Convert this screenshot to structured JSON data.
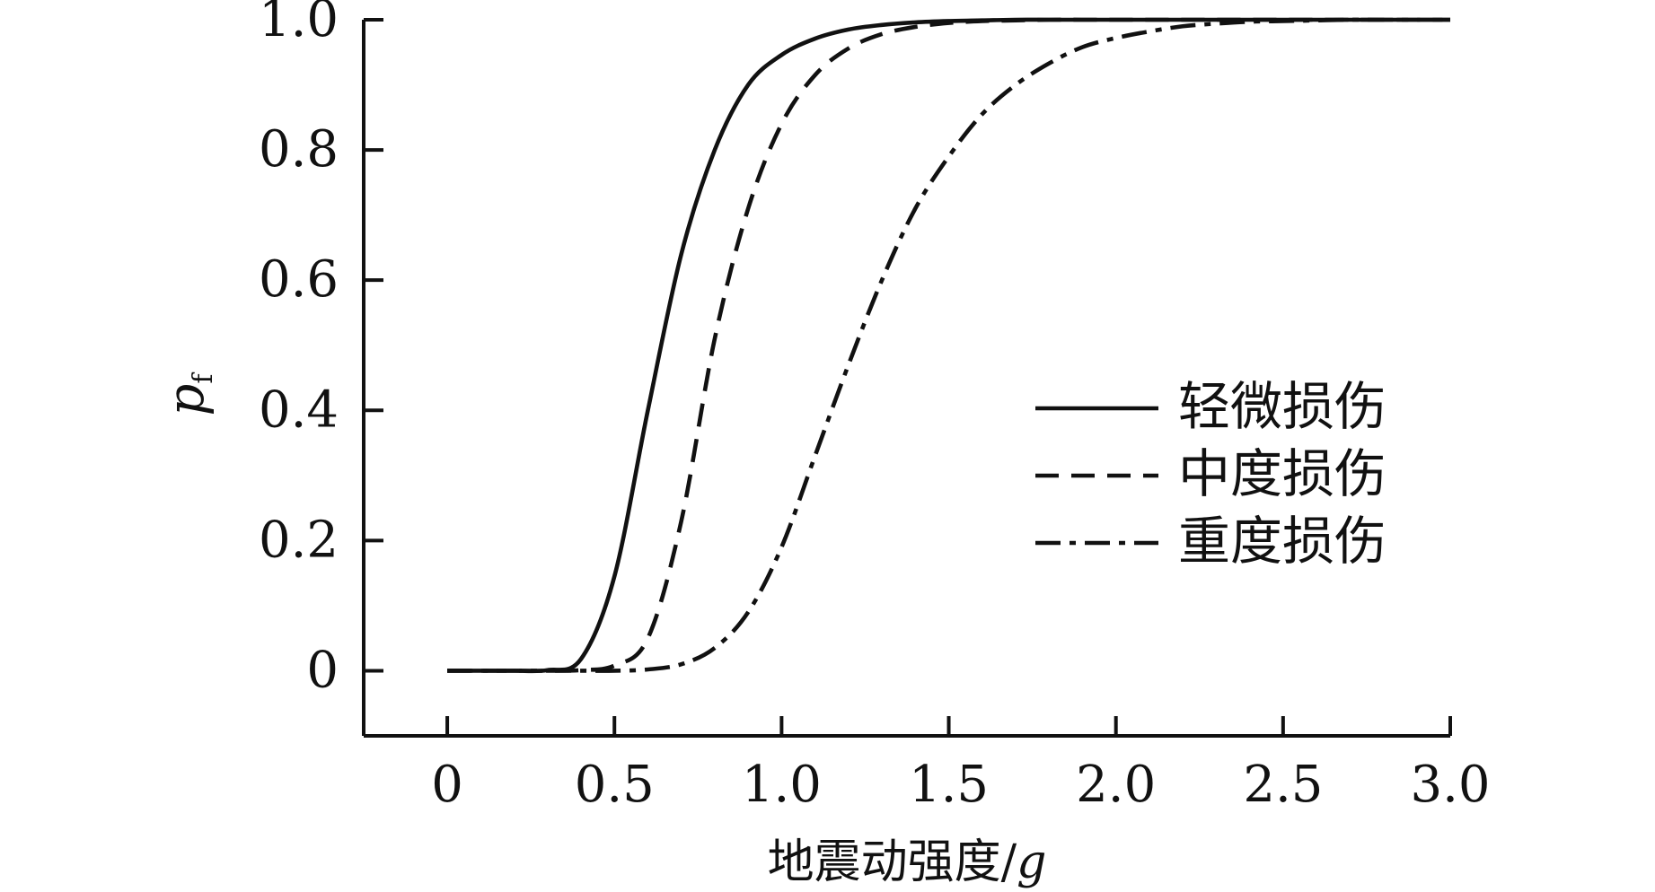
{
  "chart_data": {
    "type": "line",
    "title": "",
    "xlabel_main": "地震动强度/",
    "xlabel_italic": "g",
    "ylabel_main": "p",
    "ylabel_sub": "f",
    "xlim": [
      -0.25,
      3.0
    ],
    "ylim": [
      -0.1,
      1.0
    ],
    "grid": false,
    "legend_position": "center-right",
    "x_ticks": [
      0,
      0.5,
      1.0,
      1.5,
      2.0,
      2.5,
      3.0
    ],
    "x_tick_labels": [
      "0",
      "0.5",
      "1.0",
      "1.5",
      "2.0",
      "2.5",
      "3.0"
    ],
    "y_ticks": [
      0,
      0.2,
      0.4,
      0.6,
      0.8,
      1.0
    ],
    "y_tick_labels": [
      "0",
      "0.2",
      "0.4",
      "0.6",
      "0.8",
      "1.0"
    ],
    "x": [
      0.0,
      0.1,
      0.2,
      0.3,
      0.4,
      0.5,
      0.6,
      0.7,
      0.8,
      0.9,
      1.0,
      1.1,
      1.2,
      1.3,
      1.4,
      1.5,
      1.6,
      1.7,
      1.8,
      1.9,
      2.0,
      2.1,
      2.2,
      2.3,
      2.4,
      2.5,
      2.6,
      2.7,
      2.8,
      2.9,
      3.0
    ],
    "series": [
      {
        "name": "轻微损伤",
        "dash": "solid",
        "color": "#111111",
        "values": [
          0.0,
          0.0,
          0.0,
          0.001,
          0.018,
          0.145,
          0.4,
          0.64,
          0.8,
          0.9,
          0.946,
          0.971,
          0.985,
          0.992,
          0.996,
          0.998,
          0.999,
          1.0,
          1.0,
          1.0,
          1.0,
          1.0,
          1.0,
          1.0,
          1.0,
          1.0,
          1.0,
          1.0,
          1.0,
          1.0,
          1.0
        ]
      },
      {
        "name": "中度损伤",
        "dash": "dashed",
        "color": "#111111",
        "values": [
          0.0,
          0.0,
          0.0,
          0.0,
          0.001,
          0.008,
          0.05,
          0.23,
          0.51,
          0.71,
          0.84,
          0.915,
          0.956,
          0.978,
          0.989,
          0.995,
          0.998,
          0.999,
          1.0,
          1.0,
          1.0,
          1.0,
          1.0,
          1.0,
          1.0,
          1.0,
          1.0,
          1.0,
          1.0,
          1.0,
          1.0
        ]
      },
      {
        "name": "重度损伤",
        "dash": "dashdot",
        "color": "#111111",
        "values": [
          0.0,
          0.0,
          0.0,
          0.0,
          0.0,
          0.0,
          0.002,
          0.01,
          0.035,
          0.09,
          0.19,
          0.33,
          0.47,
          0.6,
          0.71,
          0.79,
          0.855,
          0.9,
          0.933,
          0.958,
          0.972,
          0.982,
          0.99,
          0.994,
          0.997,
          0.998,
          0.999,
          1.0,
          1.0,
          1.0,
          1.0
        ]
      }
    ]
  }
}
